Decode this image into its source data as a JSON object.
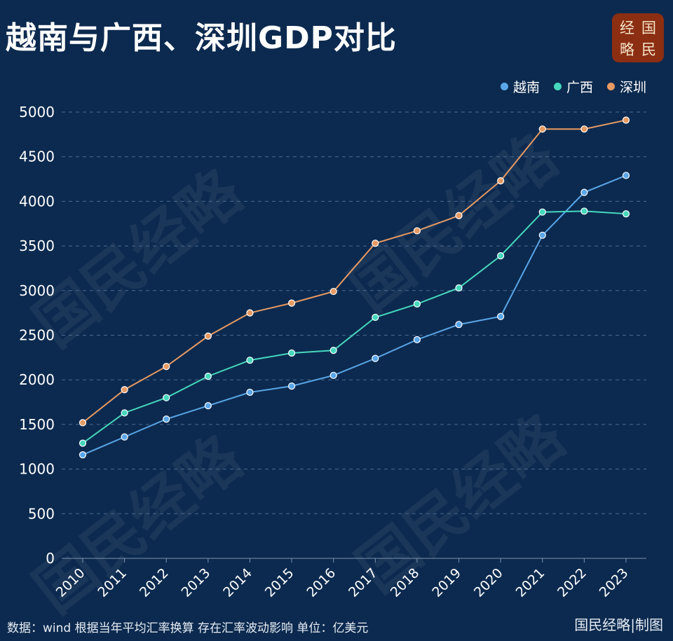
{
  "title": "越南与广西、深圳GDP对比",
  "logo": {
    "chars": [
      "经",
      "国",
      "略",
      "民"
    ]
  },
  "watermark_text": "国民经略",
  "footer": {
    "source": "数据：wind  根据当年平均汇率换算 存在汇率波动影响  单位：亿美元",
    "credit": "国民经略|制图"
  },
  "colors": {
    "background": "#0c2a4f",
    "vietnam": "#5aa6e8",
    "guangxi": "#46d7bd",
    "shenzhen": "#e79a62",
    "logo_bg": "#8c2e12"
  },
  "chart_data": {
    "type": "line",
    "title": "越南与广西、深圳GDP对比",
    "x": [
      "2010",
      "2011",
      "2012",
      "2013",
      "2014",
      "2015",
      "2016",
      "2017",
      "2018",
      "2019",
      "2020",
      "2021",
      "2022",
      "2023"
    ],
    "yticks": [
      0,
      500,
      1000,
      1500,
      2000,
      2500,
      3000,
      3500,
      4000,
      4500,
      5000
    ],
    "ylim": [
      0,
      5000
    ],
    "grid": true,
    "legend_position": "top-right",
    "series": [
      {
        "name": "越南",
        "color": "#5aa6e8",
        "values": [
          1160,
          1360,
          1560,
          1710,
          1860,
          1930,
          2050,
          2240,
          2450,
          2620,
          2710,
          3620,
          4100,
          4290
        ]
      },
      {
        "name": "广西",
        "color": "#46d7bd",
        "values": [
          1290,
          1630,
          1800,
          2040,
          2220,
          2300,
          2330,
          2700,
          2850,
          3030,
          3390,
          3880,
          3890,
          3860
        ]
      },
      {
        "name": "深圳",
        "color": "#e79a62",
        "values": [
          1520,
          1890,
          2150,
          2490,
          2750,
          2860,
          2990,
          3530,
          3670,
          3840,
          4230,
          4810,
          4810,
          4910
        ]
      }
    ]
  }
}
